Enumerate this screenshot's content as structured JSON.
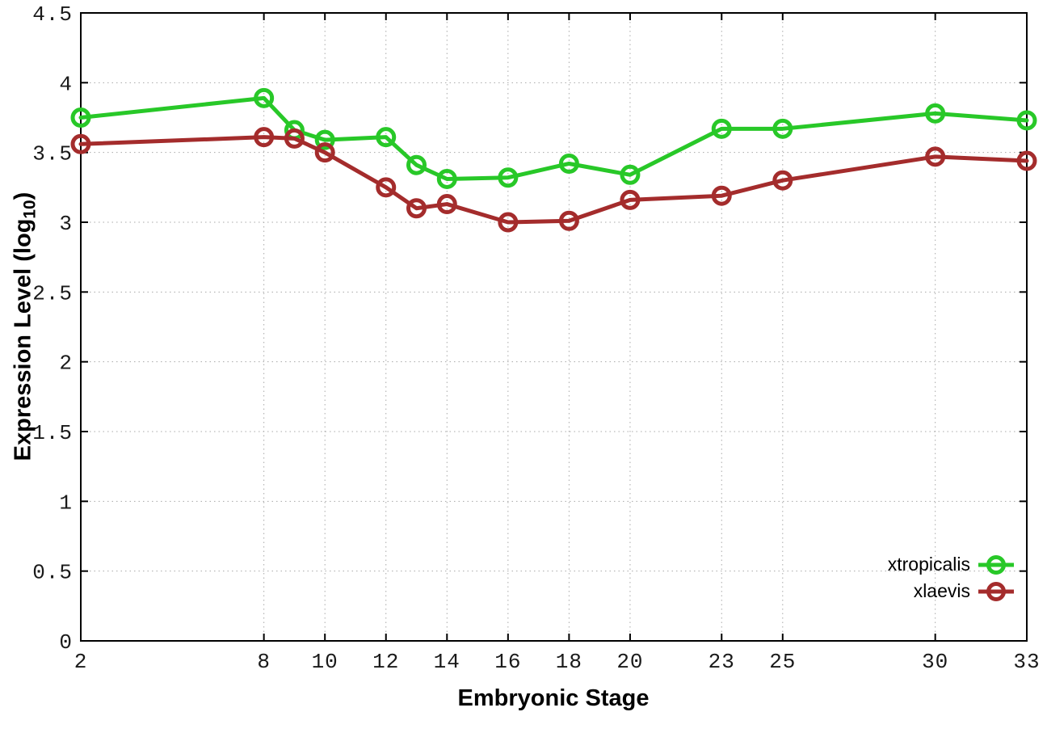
{
  "chart_data": {
    "type": "line",
    "x": [
      2,
      8,
      9,
      10,
      12,
      13,
      14,
      16,
      18,
      20,
      23,
      25,
      30,
      33
    ],
    "series": [
      {
        "name": "xtropicalis",
        "color": "#28c828",
        "values": [
          3.75,
          3.89,
          3.66,
          3.59,
          3.61,
          3.41,
          3.31,
          3.32,
          3.42,
          3.34,
          3.67,
          3.67,
          3.78,
          3.73
        ]
      },
      {
        "name": "xlaevis",
        "color": "#a42c2c",
        "values": [
          3.56,
          3.61,
          3.6,
          3.5,
          3.25,
          3.1,
          3.13,
          3.0,
          3.01,
          3.16,
          3.19,
          3.3,
          3.47,
          3.44
        ]
      }
    ],
    "title": "",
    "xlabel": "Embryonic Stage",
    "ylabel": "Expression Level (log10)",
    "ylabel_parts": {
      "prefix": "Expression Level (log",
      "sub": "10",
      "suffix": ")"
    },
    "xticks": [
      2,
      8,
      10,
      12,
      14,
      16,
      18,
      20,
      23,
      25,
      30,
      33
    ],
    "yticks": [
      0,
      0.5,
      1,
      1.5,
      2,
      2.5,
      3,
      3.5,
      4,
      4.5
    ],
    "xlim": [
      2,
      33
    ],
    "ylim": [
      0,
      4.5
    ],
    "grid": true,
    "grid_style": "dotted",
    "grid_color": "#a8a8a8",
    "axis_color": "#000000",
    "background_color": "#ffffff",
    "marker": "open-circle",
    "legend_position": "inside-bottom-right",
    "legend_entries": [
      "xtropicalis",
      "xlaevis"
    ]
  }
}
